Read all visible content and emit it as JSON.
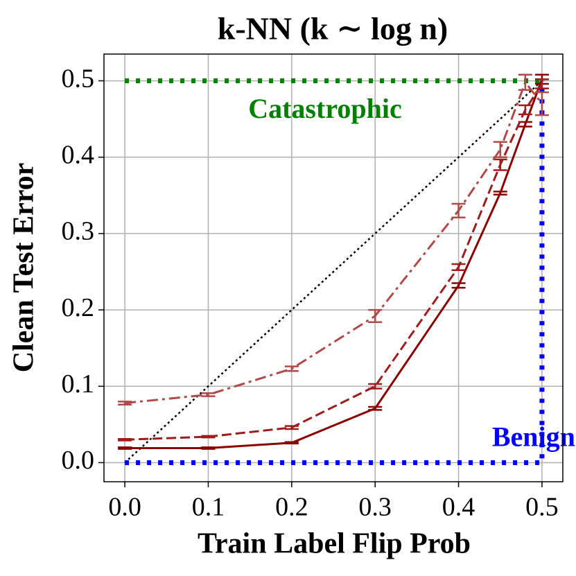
{
  "chart_data": {
    "type": "line",
    "title": "k-NN (k ∼ log n)",
    "x_label": "Train Label Flip Prob",
    "y_label": "Clean Test Error",
    "x": [
      0,
      0.1,
      0.2,
      0.3,
      0.4,
      0.45,
      0.48,
      0.5
    ],
    "series": [
      {
        "color": "#8b0000",
        "style": "solid",
        "values": [
          0.019,
          0.019,
          0.026,
          0.071,
          0.232,
          0.353,
          0.443,
          0.502
        ],
        "errors": [
          0.001,
          0.001,
          0.001,
          0.002,
          0.003,
          0.002,
          0.003,
          0.006
        ]
      },
      {
        "color": "#9e1c1c",
        "style": "dashed",
        "values": [
          0.03,
          0.034,
          0.046,
          0.1,
          0.256,
          0.39,
          0.462,
          0.496
        ],
        "errors": [
          0.001,
          0.001,
          0.002,
          0.003,
          0.004,
          0.007,
          0.006,
          0.006
        ]
      },
      {
        "color": "#b04a4a",
        "style": "dashdot",
        "values": [
          0.078,
          0.089,
          0.123,
          0.192,
          0.33,
          0.41,
          0.498,
          0.47
        ],
        "errors": [
          0.002,
          0.002,
          0.003,
          0.008,
          0.009,
          0.01,
          0.01,
          0.015
        ]
      }
    ],
    "reference_lines": [
      {
        "color": "#000000",
        "style": "dotted",
        "x": [
          0,
          0.5
        ],
        "y": [
          0,
          0.5
        ]
      },
      {
        "color": "#008000",
        "style": "thick-dotted",
        "x": [
          0,
          0.5
        ],
        "y": [
          0.5,
          0.5
        ]
      },
      {
        "color": "#0000ff",
        "style": "thick-dotted",
        "x": [
          0,
          0.5,
          0.5
        ],
        "y": [
          0,
          0,
          0.5
        ]
      }
    ],
    "annotations": [
      {
        "text": "Catastrophic",
        "color": "#008000",
        "x": 0.24,
        "y": 0.46
      },
      {
        "text": "Benign",
        "color": "#0000ff",
        "x": 0.49,
        "y": 0.03
      }
    ],
    "xlim": [
      -0.025,
      0.525
    ],
    "ylim": [
      -0.025,
      0.535
    ],
    "xticks": [
      {
        "value": 0,
        "label": "0.0"
      },
      {
        "value": 0.1,
        "label": "0.1"
      },
      {
        "value": 0.2,
        "label": "0.2"
      },
      {
        "value": 0.3,
        "label": "0.3"
      },
      {
        "value": 0.4,
        "label": "0.4"
      },
      {
        "value": 0.5,
        "label": "0.5"
      }
    ],
    "yticks": [
      {
        "value": 0,
        "label": "0.0"
      },
      {
        "value": 0.1,
        "label": "0.1"
      },
      {
        "value": 0.2,
        "label": "0.2"
      },
      {
        "value": 0.3,
        "label": "0.3"
      },
      {
        "value": 0.4,
        "label": "0.4"
      },
      {
        "value": 0.5,
        "label": "0.5"
      }
    ],
    "grid": true
  }
}
